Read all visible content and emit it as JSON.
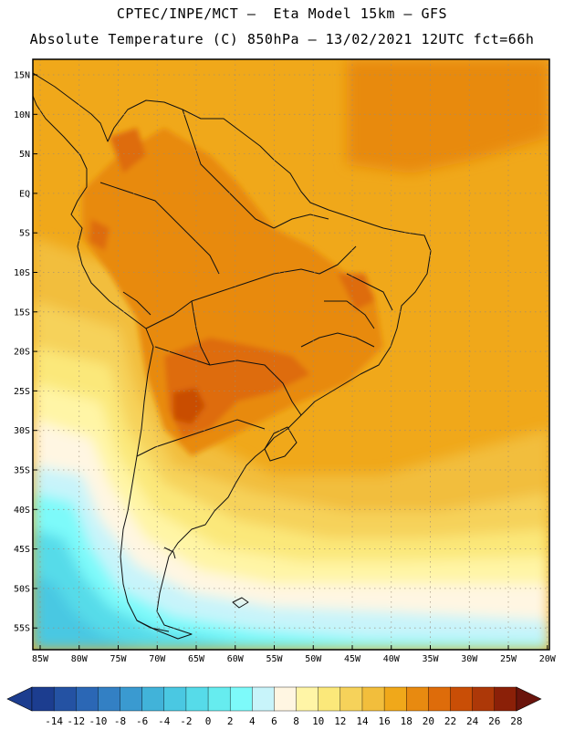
{
  "header": {
    "line1": "CPTEC/INPE/MCT –  Eta Model 15km – GFS",
    "line2": "Absolute Temperature (C) 850hPa – 13/02/2021 12UTC fct=66h"
  },
  "map": {
    "lat_ticks": [
      "15N",
      "10N",
      "5N",
      "EQ",
      "5S",
      "10S",
      "15S",
      "20S",
      "25S",
      "30S",
      "35S",
      "40S",
      "45S",
      "50S",
      "55S"
    ],
    "lon_ticks": [
      "85W",
      "80W",
      "75W",
      "70W",
      "65W",
      "60W",
      "55W",
      "50W",
      "45W",
      "40W",
      "35W",
      "30W",
      "25W",
      "20W"
    ]
  },
  "colorbar": {
    "labels": [
      "-14",
      "-12",
      "-10",
      "-8",
      "-6",
      "-4",
      "-2",
      "0",
      "2",
      "4",
      "6",
      "8",
      "10",
      "12",
      "14",
      "16",
      "18",
      "20",
      "22",
      "24",
      "26",
      "28"
    ],
    "colors": [
      "#1c3d8f",
      "#2452a3",
      "#2b67b5",
      "#3380c4",
      "#3a9ad0",
      "#41b3d9",
      "#4ac8e2",
      "#56dbe9",
      "#66ecef",
      "#7dfafa",
      "#c8f4fa",
      "#fff6e2",
      "#fff5a6",
      "#fbe87a",
      "#f6d25a",
      "#f2be3c",
      "#f0a81a",
      "#e88a10",
      "#de6c0a",
      "#c94e06",
      "#ad3808",
      "#8b2008",
      "#6a140c"
    ]
  }
}
